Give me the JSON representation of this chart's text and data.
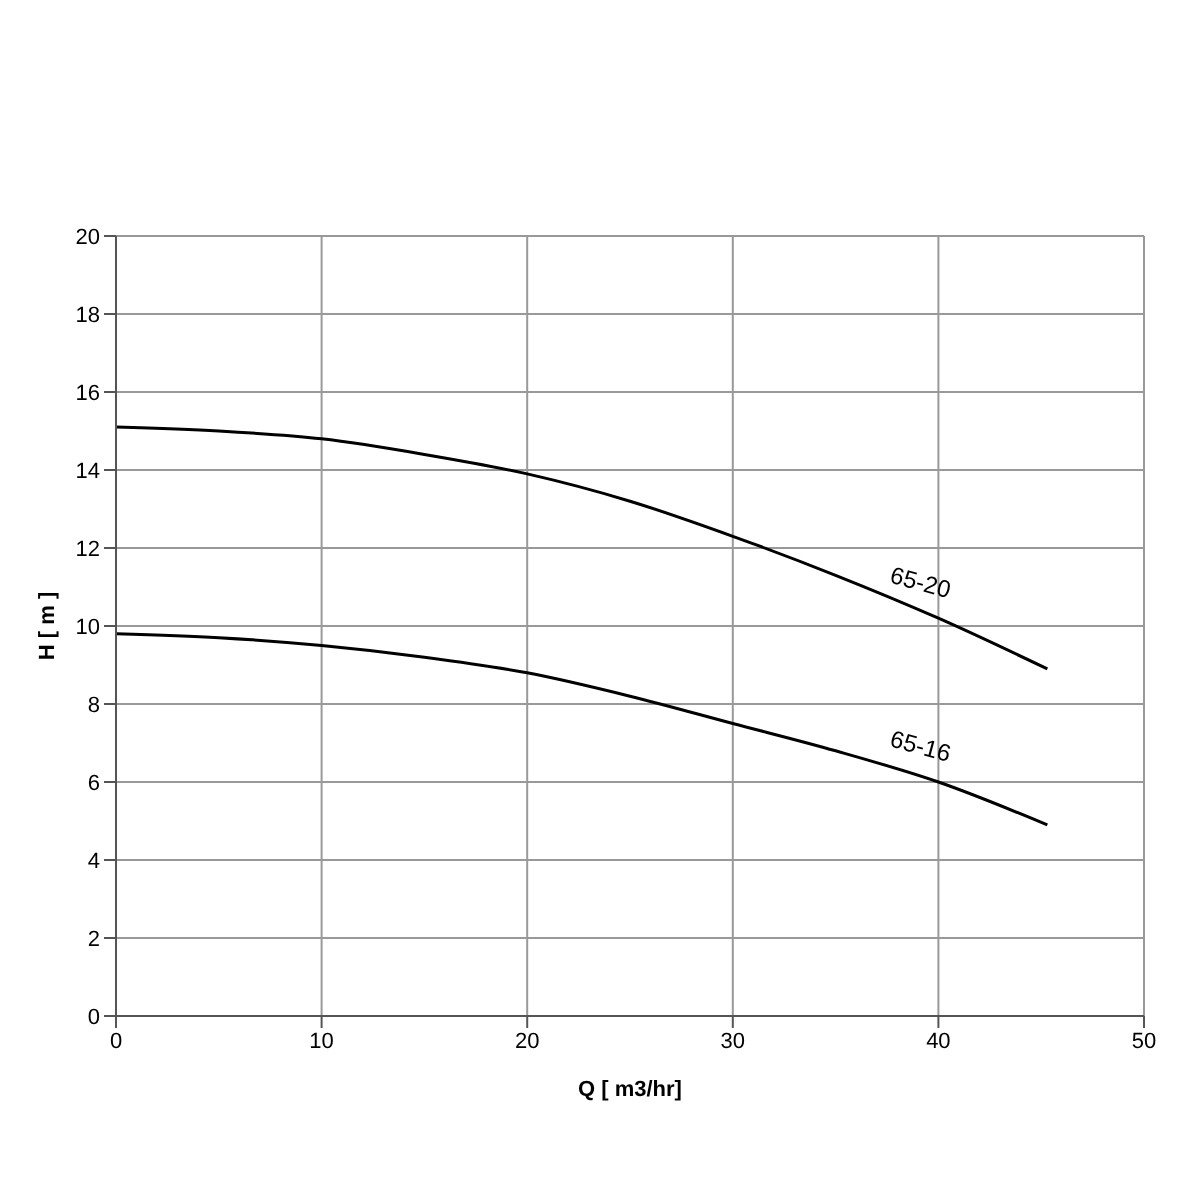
{
  "chart_data": {
    "type": "line",
    "xlabel": "Q [ m3/hr]",
    "ylabel": "H [ m ]",
    "x": [
      0,
      5,
      10,
      15,
      20,
      25,
      30,
      35,
      40,
      45.3
    ],
    "series": [
      {
        "name": "65-20",
        "color": "#000000",
        "values": [
          15.1,
          15.0,
          14.8,
          14.4,
          13.9,
          13.2,
          12.3,
          11.3,
          10.2,
          8.9
        ]
      },
      {
        "name": "65-16",
        "color": "#000000",
        "values": [
          9.8,
          9.7,
          9.5,
          9.2,
          8.8,
          8.2,
          7.5,
          6.8,
          6.0,
          4.9
        ]
      }
    ],
    "xlim": [
      0,
      50
    ],
    "xticks": [
      0,
      10,
      20,
      30,
      40,
      50
    ],
    "ylim": [
      0,
      20
    ],
    "yticks": [
      0,
      2,
      4,
      6,
      8,
      10,
      12,
      14,
      16,
      18,
      20
    ],
    "grid": true,
    "marker": "none",
    "line_style": "solid"
  }
}
